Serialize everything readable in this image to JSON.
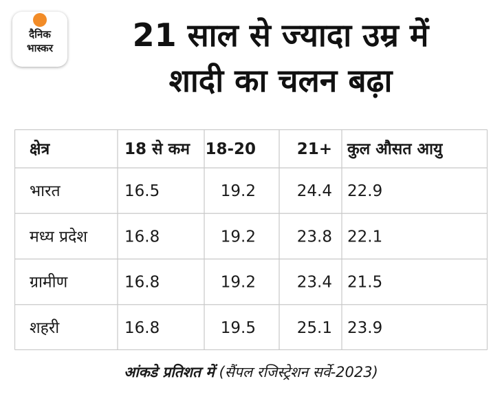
{
  "brand": {
    "line1": "दैनिक",
    "line2": "भास्कर",
    "accent_color": "#f28c28",
    "icon": "sun-icon"
  },
  "title": {
    "line1": "21 साल से ज्यादा उम्र में",
    "line2": "शादी का चलन बढ़ा"
  },
  "chart_data": {
    "type": "table",
    "columns": [
      "क्षेत्र",
      "18 से कम",
      "18-20",
      "21+",
      "कुल औसत आयु"
    ],
    "rows": [
      {
        "label": "भारत",
        "values": [
          "16.5",
          "19.2",
          "24.4",
          "22.9"
        ]
      },
      {
        "label": "मध्य प्रदेश",
        "values": [
          "16.8",
          "19.2",
          "23.8",
          "22.1"
        ]
      },
      {
        "label": "ग्रामीण",
        "values": [
          "16.8",
          "19.2",
          "23.4",
          "21.5"
        ]
      },
      {
        "label": "शहरी",
        "values": [
          "16.8",
          "19.5",
          "25.1",
          "23.9"
        ]
      }
    ]
  },
  "footer": {
    "bold_text": "आंकडे प्रतिशत में",
    "source_text": "(सैंपल रजिस्ट्रेशन सर्वे-2023)"
  },
  "colors": {
    "grid": "#c8c8c8",
    "text": "#1a1a1a"
  }
}
